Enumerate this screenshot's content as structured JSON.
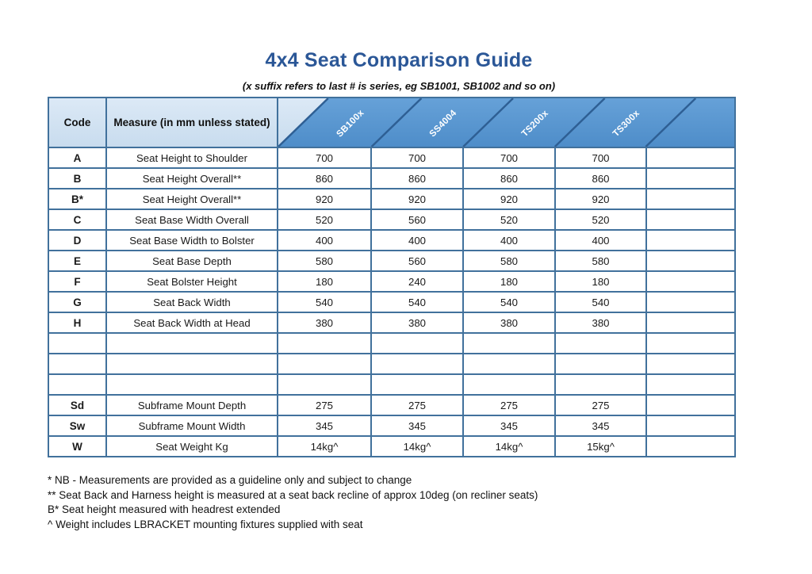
{
  "title": "4x4 Seat Comparison Guide",
  "subtitle": "(x suffix refers to last # is series, eg SB1001, SB1002 and so on)",
  "table": {
    "code_header": "Code",
    "measure_header": "Measure (in mm unless stated)",
    "product_columns": [
      "SB100x",
      "SS4004",
      "TS200x",
      "TS300x",
      ""
    ],
    "rows": [
      {
        "code": "A",
        "measure": "Seat Height to Shoulder",
        "values": [
          "700",
          "700",
          "700",
          "700",
          ""
        ]
      },
      {
        "code": "B",
        "measure": "Seat Height Overall**",
        "values": [
          "860",
          "860",
          "860",
          "860",
          ""
        ]
      },
      {
        "code": "B*",
        "measure": "Seat Height Overall**",
        "values": [
          "920",
          "920",
          "920",
          "920",
          ""
        ]
      },
      {
        "code": "C",
        "measure": "Seat Base Width Overall",
        "values": [
          "520",
          "560",
          "520",
          "520",
          ""
        ]
      },
      {
        "code": "D",
        "measure": "Seat Base Width to Bolster",
        "values": [
          "400",
          "400",
          "400",
          "400",
          ""
        ]
      },
      {
        "code": "E",
        "measure": "Seat Base Depth",
        "values": [
          "580",
          "560",
          "580",
          "580",
          ""
        ]
      },
      {
        "code": "F",
        "measure": "Seat Bolster Height",
        "values": [
          "180",
          "240",
          "180",
          "180",
          ""
        ]
      },
      {
        "code": "G",
        "measure": "Seat Back Width",
        "values": [
          "540",
          "540",
          "540",
          "540",
          ""
        ]
      },
      {
        "code": "H",
        "measure": "Seat Back Width at Head",
        "values": [
          "380",
          "380",
          "380",
          "380",
          ""
        ]
      },
      {
        "code": "",
        "measure": "",
        "values": [
          "",
          "",
          "",
          "",
          ""
        ]
      },
      {
        "code": "",
        "measure": "",
        "values": [
          "",
          "",
          "",
          "",
          ""
        ]
      },
      {
        "code": "",
        "measure": "",
        "values": [
          "",
          "",
          "",
          "",
          ""
        ]
      },
      {
        "code": "Sd",
        "measure": "Subframe Mount Depth",
        "values": [
          "275",
          "275",
          "275",
          "275",
          ""
        ]
      },
      {
        "code": "Sw",
        "measure": "Subframe Mount Width",
        "values": [
          "345",
          "345",
          "345",
          "345",
          ""
        ]
      },
      {
        "code": "W",
        "measure": "Seat Weight Kg",
        "values": [
          "14kg^",
          "14kg^",
          "14kg^",
          "15kg^",
          ""
        ]
      }
    ]
  },
  "notes": [
    "* NB - Measurements are provided as a guideline only and subject to change",
    "** Seat Back and Harness height is measured at a seat back recline of approx 10deg (on recliner seats)",
    "B* Seat height measured with headrest extended",
    "^ Weight includes LBRACKET mounting fixtures supplied with seat"
  ],
  "colors": {
    "title_blue": "#2b5797",
    "header_light_blue": "#cfe0f0",
    "header_medium_blue": "#5b9bd5",
    "diagonal_line_blue": "#2e5f94",
    "grid_border_blue": "#41719c"
  }
}
